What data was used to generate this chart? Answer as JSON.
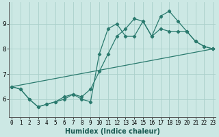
{
  "xlabel": "Humidex (Indice chaleur)",
  "bg_color": "#cce8e4",
  "grid_color": "#aacfca",
  "line_color": "#2a7a6e",
  "line1_x": [
    0,
    1,
    2,
    3,
    4,
    5,
    6,
    7,
    8,
    9,
    10,
    11,
    12,
    13,
    14,
    15,
    16,
    17,
    18,
    19,
    20,
    21,
    22,
    23
  ],
  "line1_y": [
    6.5,
    6.4,
    6.0,
    5.7,
    5.8,
    5.9,
    6.1,
    6.2,
    6.0,
    5.9,
    7.8,
    8.8,
    9.0,
    8.5,
    8.5,
    9.1,
    8.5,
    9.3,
    9.5,
    9.1,
    8.7,
    8.3,
    8.1,
    8.0
  ],
  "line2_x": [
    0,
    1,
    2,
    3,
    4,
    5,
    6,
    7,
    8,
    9,
    10,
    11,
    12,
    13,
    14,
    15,
    16,
    17,
    18,
    19,
    20,
    21,
    22,
    23
  ],
  "line2_y": [
    6.5,
    6.4,
    6.0,
    5.7,
    5.8,
    5.9,
    6.0,
    6.2,
    6.1,
    6.4,
    7.1,
    7.8,
    8.5,
    8.8,
    9.2,
    9.1,
    8.5,
    8.8,
    8.7,
    8.7,
    8.7,
    8.3,
    8.1,
    8.0
  ],
  "line3_x": [
    0,
    23
  ],
  "line3_y": [
    6.5,
    8.0
  ],
  "xlim": [
    -0.3,
    23.3
  ],
  "ylim": [
    5.3,
    9.85
  ],
  "xtick_labels": [
    "0",
    "1",
    "2",
    "3",
    "4",
    "5",
    "6",
    "7",
    "8",
    "9",
    "10",
    "11",
    "12",
    "13",
    "14",
    "15",
    "16",
    "17",
    "18",
    "19",
    "20",
    "21",
    "22",
    "23"
  ],
  "yticks": [
    6,
    7,
    8,
    9
  ],
  "marker": "D",
  "markersize": 2.2,
  "linewidth": 0.9,
  "xlabel_fontsize": 7,
  "tick_fontsize": 5.5,
  "ytick_fontsize": 6.5
}
